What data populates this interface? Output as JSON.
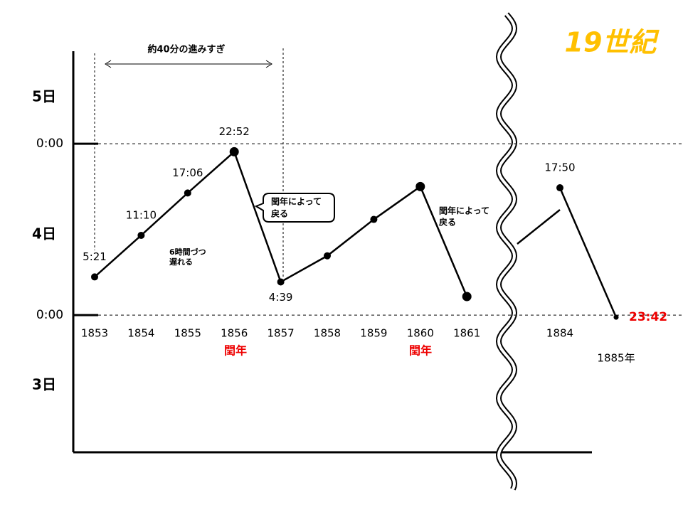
{
  "chart_data": {
    "type": "line",
    "title": "19世紀",
    "categories": [
      "1853",
      "1854",
      "1855",
      "1856",
      "1857",
      "1858",
      "1859",
      "1860",
      "1861",
      "1884",
      "1885年"
    ],
    "series": [
      {
        "name": null,
        "color": "#000000",
        "values": [
          5.35,
          11.17,
          17.1,
          22.87,
          4.65,
          8.3,
          13.4,
          18.0,
          2.6,
          17.83,
          -0.3
        ],
        "value_labels": [
          "5:21",
          "11:10",
          "17:06",
          "22:52",
          "4:39",
          null,
          null,
          null,
          null,
          "17:50",
          "23:42"
        ]
      }
    ],
    "ylim": [
      -19.2,
      36.95
    ],
    "yticks": [
      {
        "value": 0,
        "label": "0:00"
      },
      {
        "value": 24,
        "label": "0:00"
      }
    ],
    "day_labels": [
      "5日",
      "4日",
      "3日"
    ],
    "leap_year_labels": [
      "閏年",
      "閏年"
    ],
    "annotations": [
      "約40分の進みすぎ",
      "6時間づつ",
      "遅れる",
      "閏年によって",
      "戻る",
      "閏年によって",
      "戻る"
    ]
  }
}
